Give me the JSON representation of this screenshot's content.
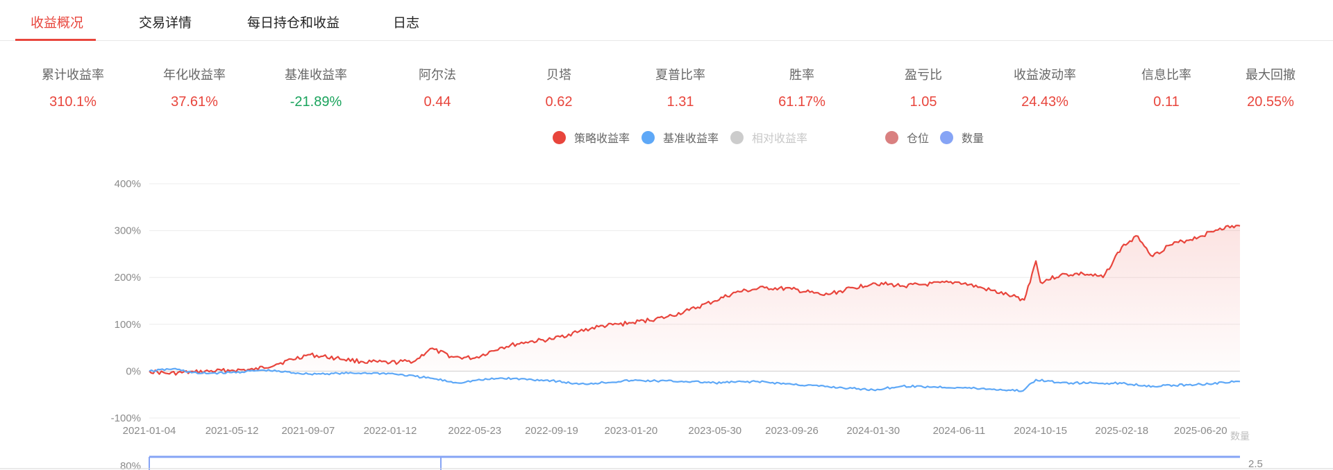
{
  "tabs": [
    {
      "label": "收益概况",
      "active": true
    },
    {
      "label": "交易详情",
      "active": false
    },
    {
      "label": "每日持仓和收益",
      "active": false
    },
    {
      "label": "日志",
      "active": false
    }
  ],
  "metrics": [
    {
      "label": "累计收益率",
      "value": "310.1%",
      "color": "#e8453c"
    },
    {
      "label": "年化收益率",
      "value": "37.61%",
      "color": "#e8453c"
    },
    {
      "label": "基准收益率",
      "value": "-21.89%",
      "color": "#1aa35c"
    },
    {
      "label": "阿尔法",
      "value": "0.44",
      "color": "#e8453c"
    },
    {
      "label": "贝塔",
      "value": "0.62",
      "color": "#e8453c"
    },
    {
      "label": "夏普比率",
      "value": "1.31",
      "color": "#e8453c"
    },
    {
      "label": "胜率",
      "value": "61.17%",
      "color": "#e8453c"
    },
    {
      "label": "盈亏比",
      "value": "1.05",
      "color": "#e8453c"
    },
    {
      "label": "收益波动率",
      "value": "24.43%",
      "color": "#e8453c"
    },
    {
      "label": "信息比率",
      "value": "0.11",
      "color": "#e8453c"
    },
    {
      "label": "最大回撤",
      "value": "20.55%",
      "color": "#e8453c"
    }
  ],
  "legend": [
    {
      "label": "策略收益率",
      "color": "#e8453c",
      "enabled": true
    },
    {
      "label": "基准收益率",
      "color": "#5ea8f7",
      "enabled": true
    },
    {
      "label": "相对收益率",
      "color": "#cccccc",
      "enabled": false
    },
    {
      "label": "仓位",
      "color": "#d98080",
      "enabled": true
    },
    {
      "label": "数量",
      "color": "#86a4f5",
      "enabled": true
    }
  ],
  "chart_data": {
    "type": "line",
    "y_ticks": [
      "400%",
      "300%",
      "200%",
      "100%",
      "0%",
      "-100%"
    ],
    "ylim": [
      -100,
      400
    ],
    "x_ticks": [
      "2021-01-04",
      "2021-05-12",
      "2021-09-07",
      "2022-01-12",
      "2022-05-23",
      "2022-09-19",
      "2023-01-20",
      "2023-05-30",
      "2023-09-26",
      "2024-01-30",
      "2024-06-11",
      "2024-10-15",
      "2025-02-18",
      "2025-06-20"
    ],
    "x_end": "2025-08-20",
    "grid": true,
    "legend_position": "top-center",
    "series": [
      {
        "name": "策略收益率",
        "color": "#e8453c",
        "area": true,
        "points": [
          [
            "2021-01-04",
            0
          ],
          [
            "2021-02-01",
            -5
          ],
          [
            "2021-03-15",
            -2
          ],
          [
            "2021-05-12",
            2
          ],
          [
            "2021-06-15",
            3
          ],
          [
            "2021-07-20",
            15
          ],
          [
            "2021-09-07",
            35
          ],
          [
            "2021-10-20",
            28
          ],
          [
            "2021-12-01",
            20
          ],
          [
            "2022-01-12",
            18
          ],
          [
            "2022-02-20",
            22
          ],
          [
            "2022-03-15",
            48
          ],
          [
            "2022-04-20",
            30
          ],
          [
            "2022-05-23",
            28
          ],
          [
            "2022-07-01",
            50
          ],
          [
            "2022-08-10",
            62
          ],
          [
            "2022-09-19",
            68
          ],
          [
            "2022-11-01",
            85
          ],
          [
            "2022-12-01",
            95
          ],
          [
            "2023-01-20",
            103
          ],
          [
            "2023-03-15",
            115
          ],
          [
            "2023-04-20",
            130
          ],
          [
            "2023-05-30",
            150
          ],
          [
            "2023-07-01",
            168
          ],
          [
            "2023-08-15",
            178
          ],
          [
            "2023-09-26",
            175
          ],
          [
            "2023-11-15",
            162
          ],
          [
            "2024-01-30",
            188
          ],
          [
            "2024-03-15",
            182
          ],
          [
            "2024-04-20",
            185
          ],
          [
            "2024-06-11",
            190
          ],
          [
            "2024-07-20",
            176
          ],
          [
            "2024-09-01",
            160
          ],
          [
            "2024-09-20",
            152
          ],
          [
            "2024-10-08",
            235
          ],
          [
            "2024-10-15",
            190
          ],
          [
            "2024-11-15",
            205
          ],
          [
            "2024-12-20",
            208
          ],
          [
            "2025-01-20",
            200
          ],
          [
            "2025-02-18",
            265
          ],
          [
            "2025-03-15",
            288
          ],
          [
            "2025-04-07",
            245
          ],
          [
            "2025-05-01",
            268
          ],
          [
            "2025-06-20",
            288
          ],
          [
            "2025-07-20",
            305
          ],
          [
            "2025-08-20",
            310
          ]
        ]
      },
      {
        "name": "基准收益率",
        "color": "#5ea8f7",
        "area": false,
        "points": [
          [
            "2021-01-04",
            0
          ],
          [
            "2021-02-10",
            5
          ],
          [
            "2021-03-20",
            -5
          ],
          [
            "2021-05-12",
            -3
          ],
          [
            "2021-07-01",
            2
          ],
          [
            "2021-09-07",
            -6
          ],
          [
            "2021-12-01",
            -4
          ],
          [
            "2022-01-12",
            -5
          ],
          [
            "2022-03-15",
            -15
          ],
          [
            "2022-04-26",
            -25
          ],
          [
            "2022-05-23",
            -20
          ],
          [
            "2022-07-05",
            -15
          ],
          [
            "2022-09-19",
            -20
          ],
          [
            "2022-10-31",
            -28
          ],
          [
            "2023-01-20",
            -20
          ],
          [
            "2023-04-15",
            -22
          ],
          [
            "2023-05-30",
            -25
          ],
          [
            "2023-08-01",
            -22
          ],
          [
            "2023-09-26",
            -28
          ],
          [
            "2024-01-30",
            -40
          ],
          [
            "2024-03-15",
            -32
          ],
          [
            "2024-06-11",
            -35
          ],
          [
            "2024-09-18",
            -42
          ],
          [
            "2024-10-08",
            -18
          ],
          [
            "2024-11-15",
            -25
          ],
          [
            "2025-02-18",
            -26
          ],
          [
            "2025-04-07",
            -32
          ],
          [
            "2025-06-20",
            -28
          ],
          [
            "2025-08-20",
            -22
          ]
        ]
      }
    ]
  },
  "axis_marks": {
    "secondary_axis_name": "数量",
    "secondary_axis_tick": "2.5",
    "lower_axis_tick": "80%"
  }
}
